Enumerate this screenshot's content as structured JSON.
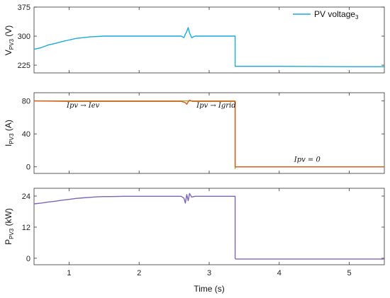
{
  "chart_data": [
    {
      "type": "line",
      "ylabel_main": "V",
      "ylabel_sub": "PV3",
      "ylabel_unit": " (V)",
      "ylim": [
        205,
        375
      ],
      "yticks": [
        225,
        300,
        375
      ],
      "xlim": [
        0.5,
        5.5
      ],
      "grid": false,
      "legend": {
        "label_main": "PV voltage",
        "label_sub": "3",
        "placement": "top-right"
      },
      "series": [
        {
          "color": "#1BA9D8",
          "x": [
            0.5,
            0.6,
            0.7,
            0.8,
            0.9,
            1.0,
            1.1,
            1.2,
            1.3,
            1.4,
            1.5,
            1.6,
            1.8,
            2.0,
            2.2,
            2.4,
            2.6,
            2.64,
            2.66,
            2.68,
            2.7,
            2.72,
            2.75,
            2.8,
            2.9,
            3.0,
            3.1,
            3.2,
            3.37,
            3.37,
            3.38,
            4.0,
            5.0,
            5.5
          ],
          "y": [
            266,
            270,
            277,
            281,
            286,
            290,
            294,
            296,
            298,
            299,
            300,
            300,
            300,
            300,
            300,
            300,
            300,
            296,
            305,
            312,
            322,
            308,
            296,
            300,
            300,
            300,
            300,
            300,
            300,
            222,
            222,
            222,
            221,
            221
          ]
        }
      ]
    },
    {
      "type": "line",
      "ylabel_main": "I",
      "ylabel_sub": "PV3",
      "ylabel_unit": " (A)",
      "ylim": [
        -8,
        90
      ],
      "yticks": [
        0,
        40,
        80
      ],
      "xlim": [
        0.5,
        5.5
      ],
      "grid": false,
      "annotations": [
        {
          "text": "Ipv → Iev",
          "x": 1.2,
          "y": 72
        },
        {
          "text": "Ipv → Igrid",
          "x": 3.1,
          "y": 72
        },
        {
          "text": "Ipv = 0",
          "x": 4.4,
          "y": 6
        }
      ],
      "series": [
        {
          "color": "#A5A428",
          "x": [
            0.5,
            3.37,
            3.37,
            3.37,
            5.5
          ],
          "y": [
            80,
            80,
            -2,
            0,
            0
          ]
        },
        {
          "color": "#D45A1E",
          "x": [
            0.5,
            1.0,
            2.0,
            2.6,
            2.66,
            2.68,
            2.7,
            2.72,
            2.76,
            3.0,
            3.37,
            3.37,
            5.5
          ],
          "y": [
            80,
            79.5,
            79.5,
            79.5,
            78,
            76,
            79,
            81,
            79.5,
            79.5,
            79.5,
            0,
            0
          ]
        }
      ]
    },
    {
      "type": "line",
      "ylabel_main": "P",
      "ylabel_sub": "PV3",
      "ylabel_unit": " (kW)",
      "ylim": [
        -2.5,
        27
      ],
      "yticks": [
        0,
        12,
        24
      ],
      "xlim": [
        0.5,
        5.5
      ],
      "xticks": [
        1,
        2,
        3,
        4,
        5
      ],
      "xlabel": "Time (s)",
      "grid": false,
      "series": [
        {
          "color": "#7B68B5",
          "x": [
            0.5,
            0.6,
            0.7,
            0.8,
            0.9,
            1.0,
            1.1,
            1.2,
            1.3,
            1.4,
            1.5,
            1.6,
            1.8,
            2.0,
            2.2,
            2.4,
            2.6,
            2.64,
            2.66,
            2.68,
            2.7,
            2.72,
            2.75,
            2.8,
            3.0,
            3.2,
            3.37,
            3.37,
            3.38,
            4.0,
            5.0,
            5.5
          ],
          "y": [
            21.0,
            21.3,
            21.7,
            22.0,
            22.4,
            22.7,
            23.1,
            23.3,
            23.5,
            23.7,
            23.8,
            23.8,
            23.9,
            23.9,
            23.9,
            23.9,
            23.9,
            23.2,
            21.3,
            24.6,
            22.2,
            25.0,
            23.6,
            23.9,
            23.9,
            23.9,
            23.9,
            0.0,
            -0.3,
            -0.3,
            -0.3,
            -0.3
          ]
        }
      ]
    }
  ]
}
